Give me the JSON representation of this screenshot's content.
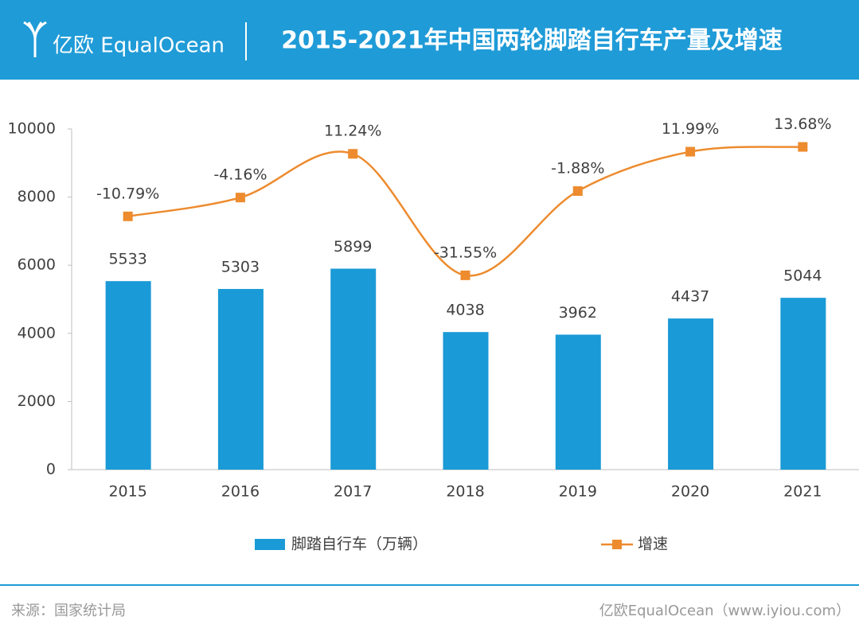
{
  "header": {
    "logo": "亿欧 EqualOcean",
    "title": "2015-2021年中国两轮脚踏自行车产量及增速"
  },
  "chart_data": {
    "type": "bar-line",
    "categories": [
      "2015",
      "2016",
      "2017",
      "2018",
      "2019",
      "2020",
      "2021"
    ],
    "series": [
      {
        "name": "脚踏自行车（万辆）",
        "type": "bar",
        "color": "#1a9ad6",
        "values": [
          5533,
          5303,
          5899,
          4038,
          3962,
          4437,
          5044
        ]
      },
      {
        "name": "增速",
        "type": "line",
        "axis": "y2",
        "color": "#ed8b2e",
        "values": [
          -10.79,
          -4.16,
          11.24,
          -31.55,
          -1.88,
          11.99,
          13.68
        ],
        "value_labels": [
          "-10.79%",
          "-4.16%",
          "11.24%",
          "-31.55%",
          "-1.88%",
          "11.99%",
          "13.68%"
        ]
      }
    ],
    "ylim": [
      0,
      10000
    ],
    "yticks": [
      0,
      2000,
      4000,
      6000,
      8000,
      10000
    ],
    "y2lim": [
      -100,
      20
    ],
    "grid": false,
    "legend": "bottom"
  },
  "footer": {
    "source": "来源：国家统计局",
    "credit": "亿欧EqualOcean（www.iyiou.com）"
  }
}
